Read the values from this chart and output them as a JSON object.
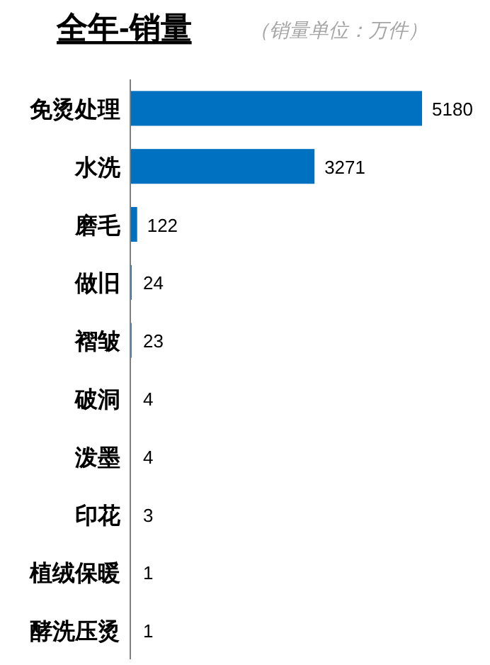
{
  "chart_data": {
    "type": "bar",
    "orientation": "horizontal",
    "title": "全年-销量",
    "subtitle": "（销量单位：万件）",
    "categories": [
      "免烫处理",
      "水洗",
      "磨毛",
      "做旧",
      "褶皱",
      "破洞",
      "泼墨",
      "印花",
      "植绒保暖",
      "酵洗压烫"
    ],
    "values": [
      5180,
      3271,
      122,
      24,
      23,
      4,
      4,
      3,
      1,
      1
    ],
    "color": "#0070c0",
    "data_labels": true
  }
}
